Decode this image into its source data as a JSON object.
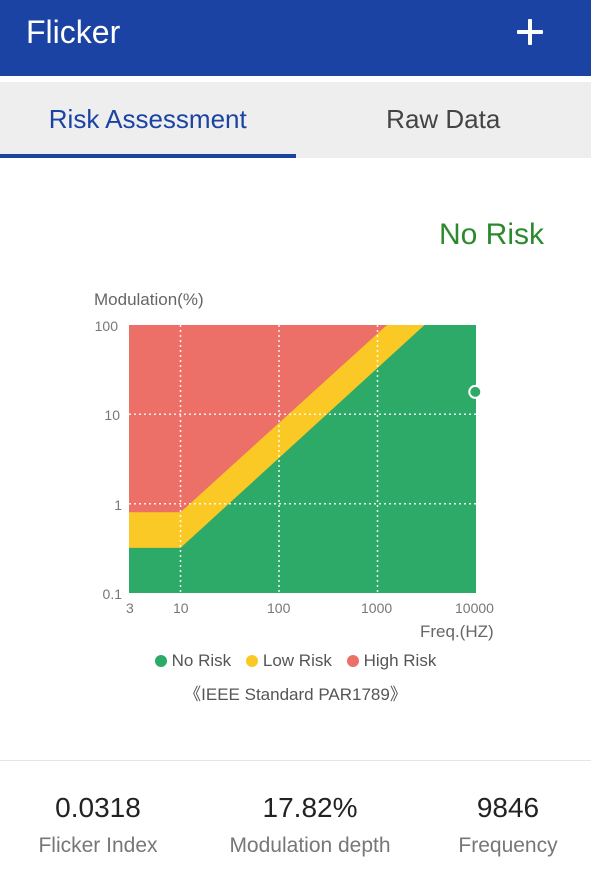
{
  "appbar": {
    "title": "Flicker",
    "add_icon": "plus-icon"
  },
  "tabs": [
    {
      "label": "Risk Assessment",
      "active": true
    },
    {
      "label": "Raw Data",
      "active": false
    }
  ],
  "status": {
    "text": "No Risk",
    "color": "#2b8a2e"
  },
  "chart_data": {
    "type": "area",
    "ylabel": "Modulation(%)",
    "xlabel": "Freq.(HZ)",
    "x_scale": "log",
    "y_scale": "log",
    "xlim": [
      3,
      10000
    ],
    "ylim": [
      0.1,
      100
    ],
    "x_ticks": [
      "3",
      "10",
      "100",
      "1000",
      "10000"
    ],
    "y_ticks": [
      "100",
      "10",
      "1",
      "0.1"
    ],
    "grid": true,
    "legend": [
      {
        "name": "No Risk",
        "color": "#2eaa68"
      },
      {
        "name": "Low Risk",
        "color": "#fbc926"
      },
      {
        "name": "High Risk",
        "color": "#ec7068"
      }
    ],
    "regions": {
      "low_risk_upper": [
        [
          3,
          0.8
        ],
        [
          10,
          0.8
        ],
        [
          1250,
          100
        ]
      ],
      "no_risk_upper": [
        [
          3,
          0.32
        ],
        [
          10,
          0.32
        ],
        [
          3000,
          100
        ]
      ]
    },
    "marker": {
      "freq": 9846,
      "modulation": 17.82
    },
    "standard": "《IEEE Standard PAR1789》"
  },
  "stats": [
    {
      "value": "0.0318",
      "label": "Flicker Index"
    },
    {
      "value": "17.82%",
      "label": "Modulation depth"
    },
    {
      "value": "9846",
      "label": "Frequency"
    }
  ]
}
